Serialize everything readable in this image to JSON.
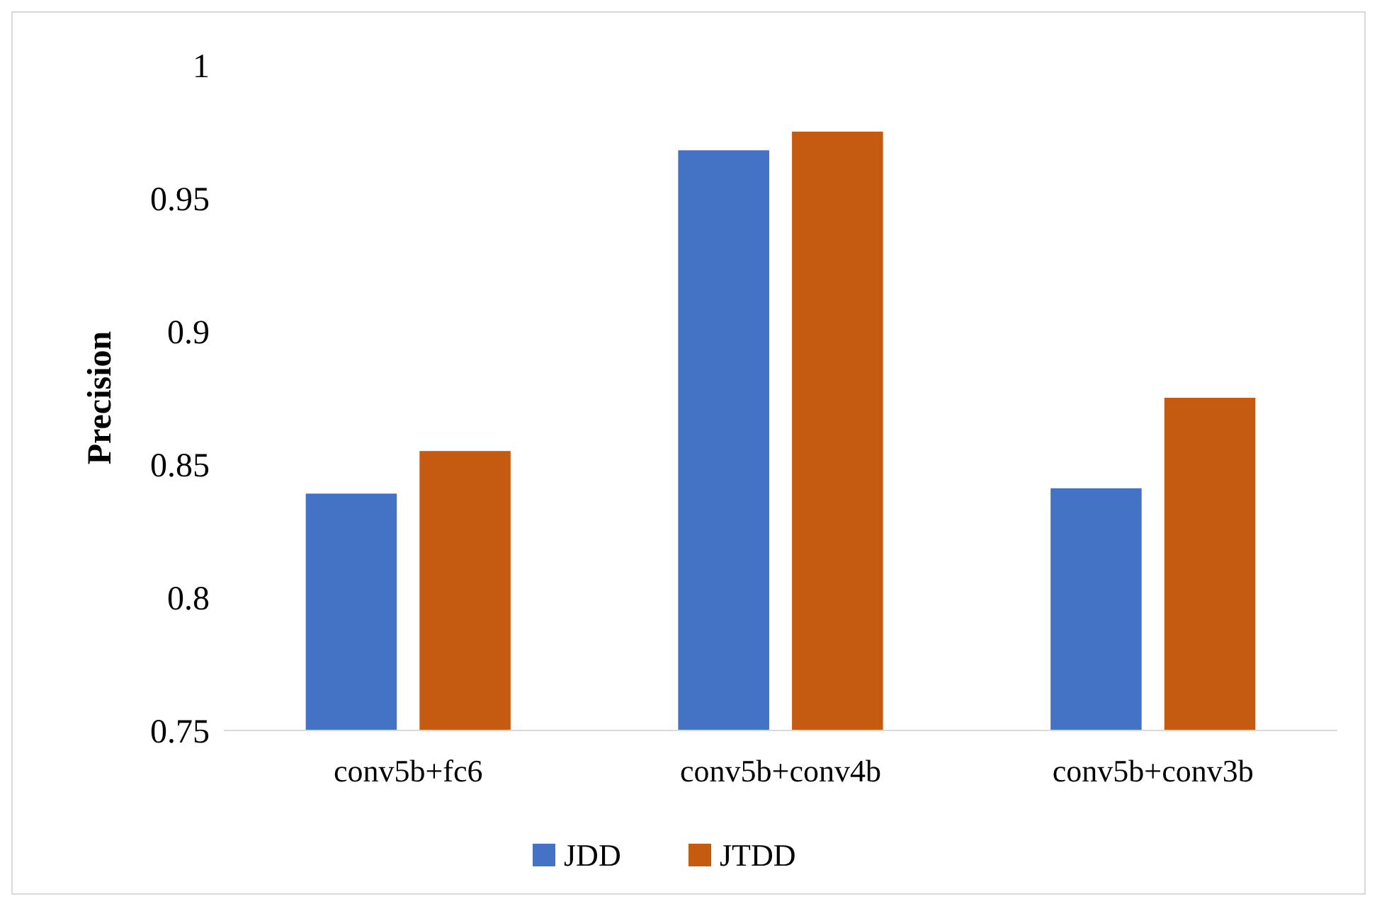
{
  "chart_data": {
    "type": "bar",
    "ylabel": "Precision",
    "categories": [
      "conv5b+fc6",
      "conv5b+conv4b",
      "conv5b+conv3b"
    ],
    "series": [
      {
        "name": "JDD",
        "color": "#4472c4",
        "values": [
          0.839,
          0.968,
          0.841
        ]
      },
      {
        "name": "JTDD",
        "color": "#c55a11",
        "values": [
          0.855,
          0.975,
          0.875
        ]
      }
    ],
    "ylim": [
      0.75,
      1
    ],
    "yticks": [
      0.75,
      0.8,
      0.85,
      0.9,
      0.95,
      1
    ],
    "grid": false,
    "legend": "bottom"
  }
}
